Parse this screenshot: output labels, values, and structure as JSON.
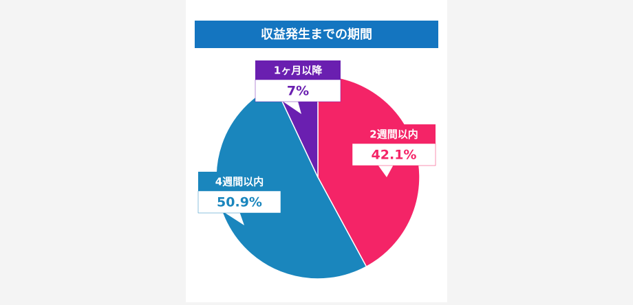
{
  "chart_data": {
    "type": "pie",
    "title": "収益発生までの期間",
    "categories": [
      "2週間以内",
      "4週間以内",
      "1ヶ月以降"
    ],
    "values": [
      42.1,
      50.9,
      7
    ],
    "value_labels": [
      "42.1%",
      "50.9%",
      "7%"
    ],
    "colors": [
      "#f42467",
      "#1a86bd",
      "#6a1fb0"
    ],
    "title_color": "#1475c0"
  }
}
